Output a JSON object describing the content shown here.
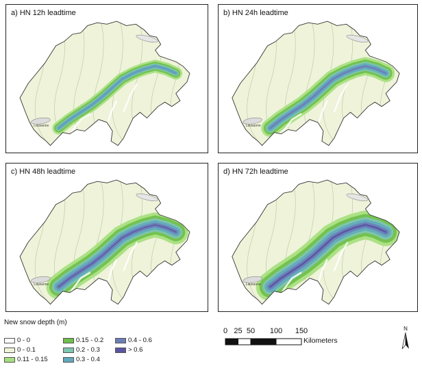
{
  "panels": [
    {
      "title": "a) HN 12h leadtime",
      "level": 0.2
    },
    {
      "title": "b) HN 24h leadtime",
      "level": 0.38
    },
    {
      "title": "c) HN 48h leadtime",
      "level": 0.62
    },
    {
      "title": "d) HN 72h leadtime",
      "level": 0.75
    }
  ],
  "map_labels": [
    "Lausanne"
  ],
  "legend": {
    "title": "New snow depth (m)",
    "items": [
      {
        "label": "0 - 0",
        "color": "#ffffff"
      },
      {
        "label": "0 - 0.1",
        "color": "#eef3d9"
      },
      {
        "label": "0.11 - 0.15",
        "color": "#a6df7e"
      },
      {
        "label": "0.15 - 0.2",
        "color": "#6fbf4a"
      },
      {
        "label": "0.2 - 0.3",
        "color": "#7fc6b1"
      },
      {
        "label": "0.3 - 0.4",
        "color": "#62a9be"
      },
      {
        "label": "0.4 - 0.6",
        "color": "#6d7fb8"
      },
      {
        "label": "> 0.6",
        "color": "#5b55a3"
      }
    ]
  },
  "scalebar": {
    "ticks": [
      "0",
      "25",
      "50",
      "100",
      "150"
    ],
    "tick_values": [
      0,
      25,
      50,
      100,
      150
    ],
    "unit": "Kilometers"
  },
  "north_label": "N"
}
